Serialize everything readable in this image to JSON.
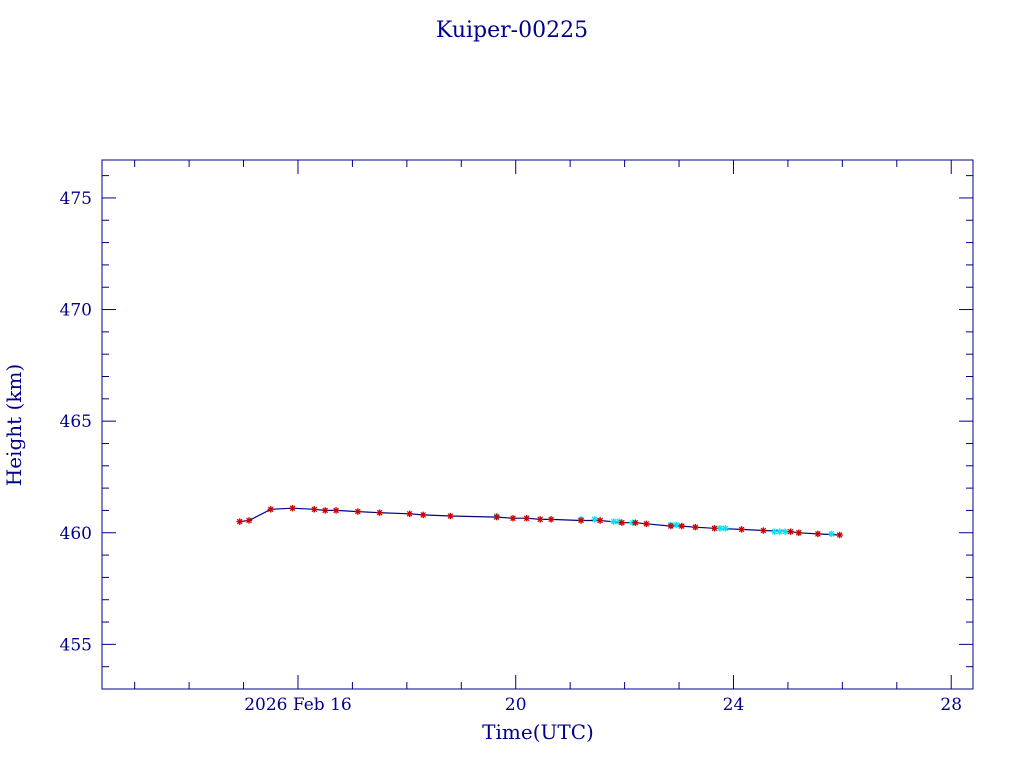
{
  "chart_data": {
    "type": "line",
    "title": "Kuiper-00225",
    "xlabel": "Time(UTC)",
    "ylabel": "Height (km)",
    "x_unit": "2026 Feb day (UTC)",
    "xlim": [
      12.4,
      28.4
    ],
    "ylim": [
      453,
      476.7
    ],
    "x_ticks": [
      {
        "value": 16,
        "label": "2026 Feb 16"
      },
      {
        "value": 20,
        "label": "20"
      },
      {
        "value": 24,
        "label": "24"
      },
      {
        "value": 28,
        "label": "28"
      }
    ],
    "y_ticks": [
      455,
      460,
      465,
      470,
      475
    ],
    "colors": {
      "axis": "#00008b",
      "line": "#00008b",
      "marker_red": "#cc0000",
      "marker_cyan": "#00e5ee"
    },
    "series": [
      {
        "marker": "red-star",
        "x": [
          14.93,
          15.1,
          15.5,
          15.9,
          16.3,
          16.5,
          16.7,
          17.1,
          17.5,
          18.05,
          18.3,
          18.8,
          19.65,
          19.95,
          20.2,
          20.45,
          20.65,
          21.2,
          21.55,
          21.95,
          22.2,
          22.4,
          22.85,
          23.05,
          23.3,
          23.65,
          24.15,
          24.55,
          25.05,
          25.2,
          25.55,
          25.95
        ],
        "y": [
          460.5,
          460.55,
          461.05,
          461.1,
          461.05,
          461.0,
          461.0,
          460.95,
          460.9,
          460.85,
          460.8,
          460.75,
          460.7,
          460.65,
          460.65,
          460.6,
          460.6,
          460.55,
          460.55,
          460.45,
          460.45,
          460.4,
          460.3,
          460.3,
          460.25,
          460.2,
          460.15,
          460.1,
          460.05,
          460.0,
          459.95,
          459.9
        ]
      },
      {
        "marker": "cyan-star",
        "x": [
          19.65,
          21.2,
          21.45,
          21.55,
          21.8,
          21.9,
          22.15,
          22.85,
          22.95,
          23.65,
          23.75,
          23.85,
          24.75,
          24.85,
          24.95,
          25.2,
          25.8
        ],
        "y": [
          460.75,
          460.6,
          460.6,
          460.55,
          460.5,
          460.5,
          460.45,
          460.35,
          460.35,
          460.2,
          460.2,
          460.2,
          460.05,
          460.05,
          460.05,
          460.0,
          459.95
        ]
      }
    ]
  }
}
